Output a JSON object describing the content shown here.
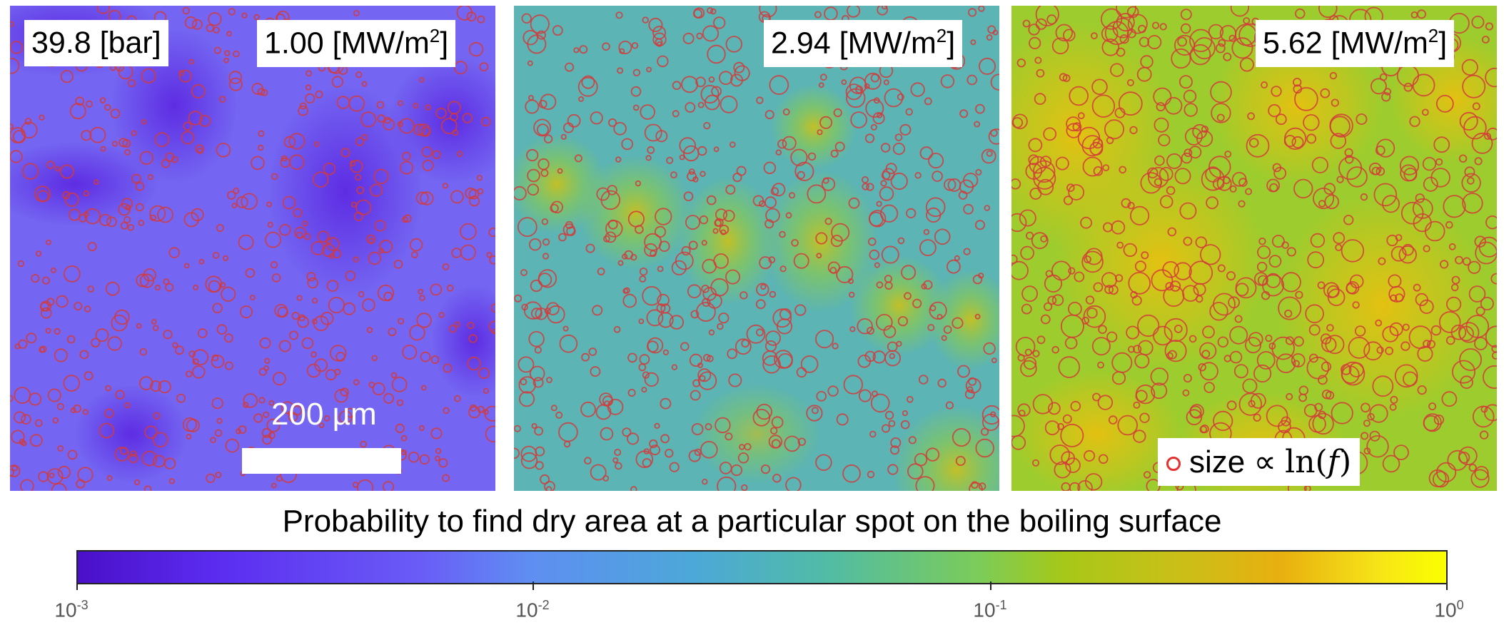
{
  "panels": [
    {
      "pressure_label": "39.8 [bar]",
      "heat_flux_value": "1.00",
      "heat_flux_unit_prefix": "[MW/m",
      "heat_flux_unit_exp": "2",
      "heat_flux_unit_suffix": "]"
    },
    {
      "heat_flux_value": "2.94",
      "heat_flux_unit_prefix": "[MW/m",
      "heat_flux_unit_exp": "2",
      "heat_flux_unit_suffix": "]"
    },
    {
      "heat_flux_value": "5.62",
      "heat_flux_unit_prefix": "[MW/m",
      "heat_flux_unit_exp": "2",
      "heat_flux_unit_suffix": "]"
    }
  ],
  "scale_bar_label": "200 µm",
  "legend": {
    "text": "size ∝",
    "ln": "ln(",
    "f": "f",
    "close": ")"
  },
  "colorbar": {
    "title": "Probability to find dry area at a particular spot on the boiling surface",
    "tick_bases": [
      "10",
      "10",
      "10",
      "10"
    ],
    "tick_exponents": [
      "-3",
      "-2",
      "-1",
      "0"
    ]
  },
  "colors": {
    "circle_stroke": "#d43a3a",
    "panel1_base": "#7466f2",
    "panel2_base": "#5cb4b4",
    "panel3_base": "#9ccc2e"
  }
}
